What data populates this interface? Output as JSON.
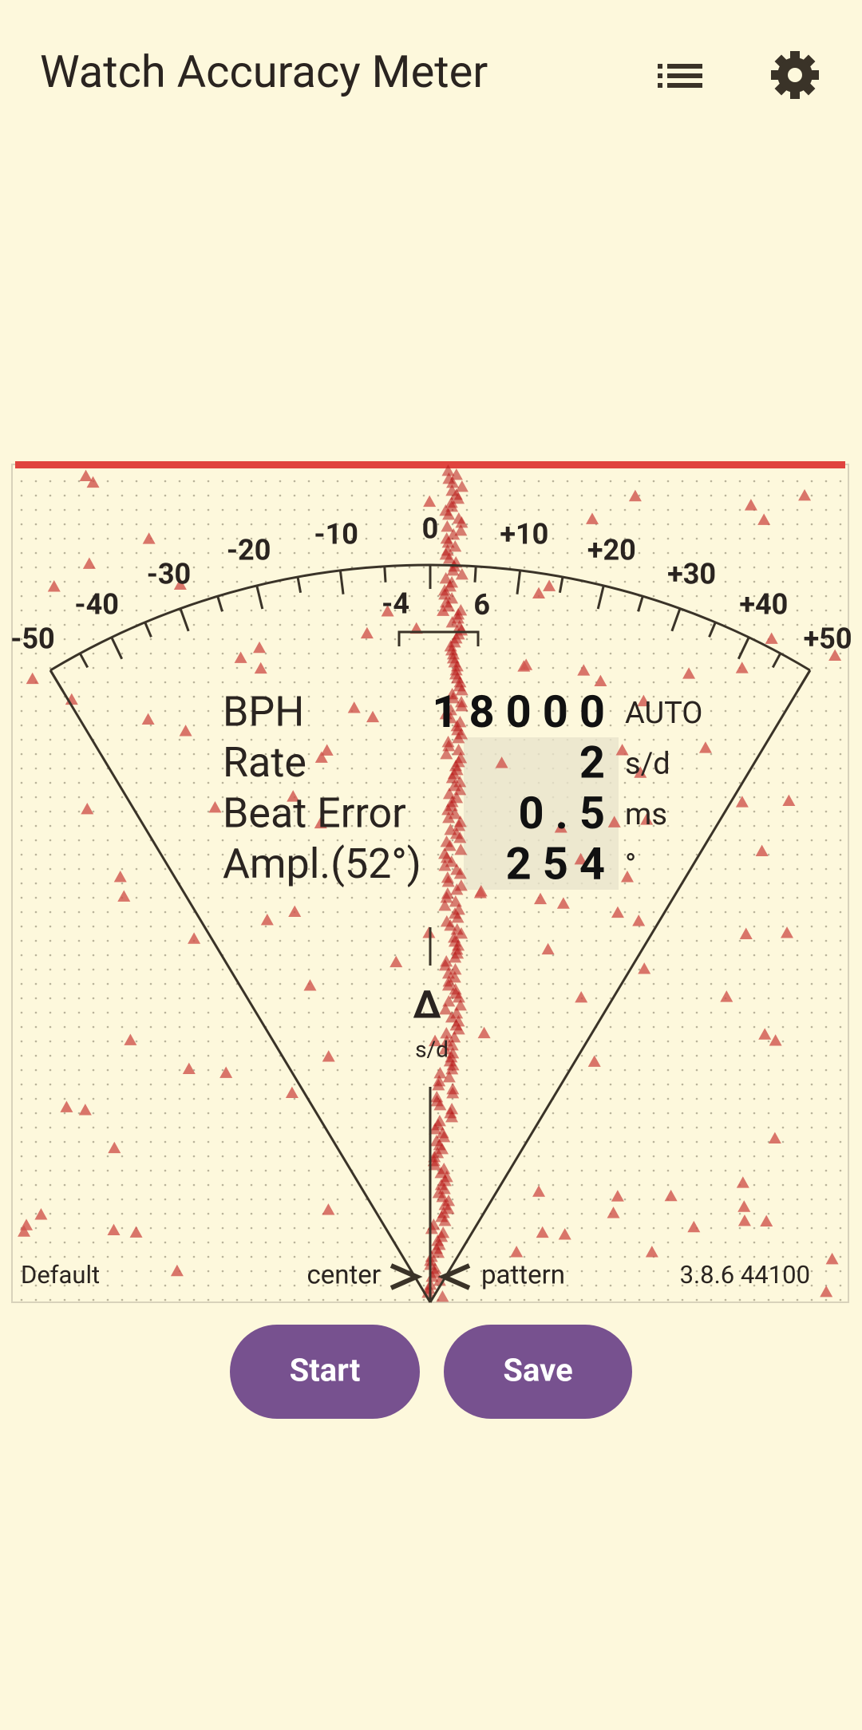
{
  "header": {
    "title": "Watch Accuracy Meter"
  },
  "dial": {
    "scale_labels": [
      "-50",
      "-40",
      "-30",
      "-20",
      "-10",
      "0",
      "+10",
      "+20",
      "+30",
      "+40",
      "+50"
    ],
    "fine_labels": [
      "-4",
      "6"
    ],
    "center_symbol": "Δ",
    "center_unit": "s/d"
  },
  "readings": [
    {
      "label": "BPH",
      "value": "18000",
      "unit": "AUTO"
    },
    {
      "label": "Rate",
      "value": "2",
      "unit": "s/d"
    },
    {
      "label": "Beat Error",
      "value": "0.5",
      "unit": "ms"
    },
    {
      "label": "Ampl.(52°)",
      "value": "254",
      "unit": "°"
    }
  ],
  "footer": {
    "profile": "Default",
    "left_mode": "center",
    "right_mode": "pattern",
    "version": "3.8.6 44100"
  },
  "buttons": [
    "Start",
    "Save"
  ]
}
